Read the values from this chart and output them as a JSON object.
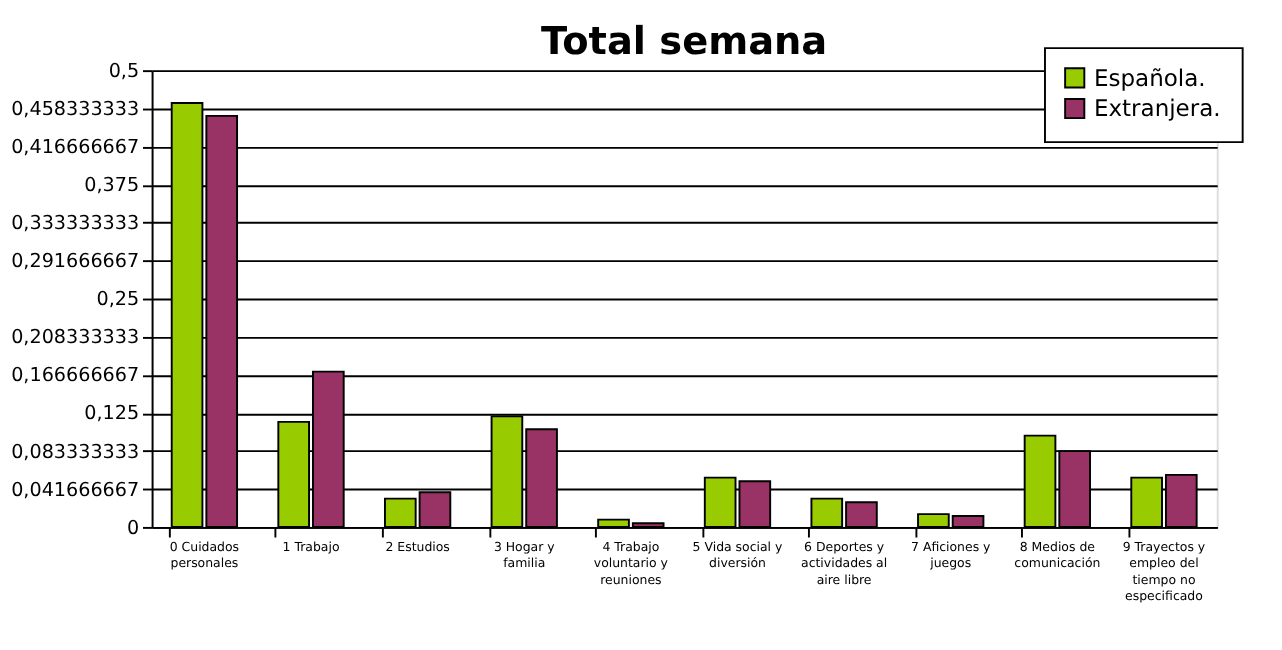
{
  "chart_data": {
    "type": "bar",
    "title": "Total semana",
    "categories": [
      "0 Cuidados\npersonales",
      "1 Trabajo",
      "2 Estudios",
      "3 Hogar y\nfamilia",
      "4 Trabajo\nvoluntario y\nreuniones",
      "5 Vida social y\ndiversión",
      "6 Deportes y\nactividades al\naire libre",
      "7 Aficiones y\njuegos",
      "8 Medios de\ncomunicación",
      "9 Trayectos y\nempleo del\ntiempo no\nespecificado"
    ],
    "series": [
      {
        "name": "Española.",
        "color": "#99cc00",
        "values": [
          0.464,
          0.115,
          0.031,
          0.121,
          0.008,
          0.054,
          0.031,
          0.014,
          0.1,
          0.054
        ]
      },
      {
        "name": "Extranjera.",
        "color": "#993366",
        "values": [
          0.45,
          0.17,
          0.038,
          0.107,
          0.004,
          0.05,
          0.027,
          0.012,
          0.083,
          0.057
        ]
      }
    ],
    "ylim": [
      0,
      0.5
    ],
    "yticks": [
      0,
      {
        "value": 0.041666667,
        "label": "0,041666667"
      },
      {
        "value": 0.083333333,
        "label": "0,083333333"
      },
      {
        "value": 0.125,
        "label": "0,125"
      },
      {
        "value": 0.166666667,
        "label": "0,166666667"
      },
      {
        "value": 0.208333333,
        "label": "0,208333333"
      },
      {
        "value": 0.25,
        "label": "0,25"
      },
      {
        "value": 0.291666667,
        "label": "0,291666667"
      },
      {
        "value": 0.333333333,
        "label": "0,333333333"
      },
      {
        "value": 0.375,
        "label": "0,375"
      },
      {
        "value": 0.416666667,
        "label": "0,416666667"
      },
      {
        "value": 0.458333333,
        "label": "0,458333333"
      },
      {
        "value": 0.5,
        "label": "0,5"
      }
    ],
    "grid": "y",
    "legend": "top right"
  }
}
